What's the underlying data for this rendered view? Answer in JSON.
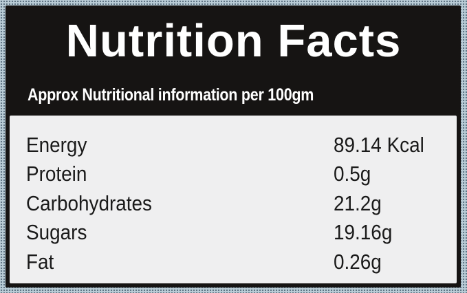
{
  "title": "Nutrition Facts",
  "subtitle": "Approx Nutritional information per 100gm",
  "rows": [
    {
      "nutrient": "Energy",
      "value": "89.14 Kcal"
    },
    {
      "nutrient": "Protein",
      "value": "0.5g"
    },
    {
      "nutrient": "Carbohydrates",
      "value": "21.2g"
    },
    {
      "nutrient": "Sugars",
      "value": "19.16g"
    },
    {
      "nutrient": "Fat",
      "value": "0.26g"
    }
  ]
}
